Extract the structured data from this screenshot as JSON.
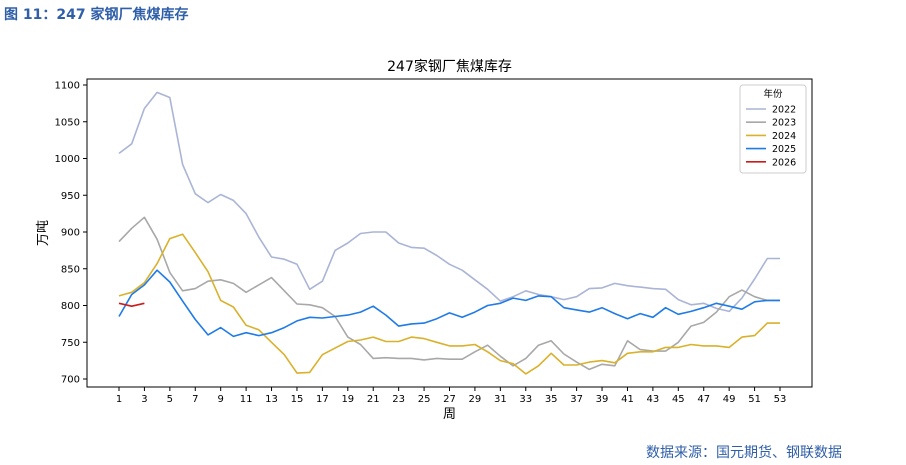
{
  "figure_caption": "图 11：247 家钢厂焦煤库存",
  "source": "数据来源：国元期货、钢联数据",
  "chart_data": {
    "type": "line",
    "title": "247家钢厂焦煤库存",
    "xlabel": "周",
    "ylabel": "万吨",
    "xlim": [
      1,
      53
    ],
    "ylim": [
      700,
      1100
    ],
    "x_ticks": [
      1,
      3,
      5,
      7,
      9,
      11,
      13,
      15,
      17,
      19,
      21,
      23,
      25,
      27,
      29,
      31,
      33,
      35,
      37,
      39,
      41,
      43,
      45,
      47,
      49,
      51,
      53
    ],
    "y_ticks": [
      700,
      750,
      800,
      850,
      900,
      950,
      1000,
      1050,
      1100
    ],
    "grid": false,
    "legend_title": "年份",
    "legend_position": "top-right",
    "series": [
      {
        "name": "2022",
        "color": "#aab4d6",
        "x": [
          1,
          2,
          3,
          4,
          5,
          6,
          7,
          8,
          9,
          10,
          11,
          12,
          13,
          14,
          15,
          16,
          17,
          18,
          19,
          20,
          21,
          22,
          23,
          24,
          25,
          26,
          27,
          28,
          29,
          30,
          31,
          32,
          33,
          34,
          35,
          36,
          37,
          38,
          39,
          40,
          41,
          42,
          43,
          44,
          45,
          46,
          47,
          48,
          49,
          50,
          51,
          52,
          53
        ],
        "values": [
          1007,
          1020,
          1068,
          1090,
          1083,
          992,
          952,
          940,
          951,
          943,
          925,
          893,
          866,
          863,
          856,
          822,
          833,
          875,
          885,
          898,
          900,
          900,
          885,
          879,
          878,
          868,
          856,
          848,
          835,
          822,
          806,
          812,
          820,
          815,
          812,
          808,
          812,
          823,
          824,
          830,
          827,
          825,
          823,
          822,
          808,
          801,
          803,
          796,
          792,
          810,
          836,
          864,
          864
        ]
      },
      {
        "name": "2023",
        "color": "#a8a8a8",
        "x": [
          1,
          2,
          3,
          4,
          5,
          6,
          7,
          8,
          9,
          10,
          11,
          12,
          13,
          14,
          15,
          16,
          17,
          18,
          19,
          20,
          21,
          22,
          23,
          24,
          25,
          26,
          27,
          28,
          29,
          30,
          31,
          32,
          33,
          34,
          35,
          36,
          37,
          38,
          39,
          40,
          41,
          42,
          43,
          44,
          45,
          46,
          47,
          48,
          49,
          50,
          51,
          52,
          53
        ],
        "values": [
          887,
          905,
          920,
          890,
          845,
          820,
          823,
          833,
          835,
          830,
          818,
          828,
          838,
          820,
          802,
          801,
          797,
          785,
          757,
          747,
          728,
          729,
          728,
          728,
          726,
          728,
          727,
          727,
          737,
          746,
          731,
          718,
          728,
          746,
          752,
          734,
          723,
          713,
          720,
          718,
          752,
          740,
          738,
          738,
          750,
          772,
          777,
          791,
          812,
          821,
          812,
          807,
          807
        ]
      },
      {
        "name": "2024",
        "color": "#d9b12b",
        "x": [
          1,
          2,
          3,
          4,
          5,
          6,
          7,
          8,
          9,
          10,
          11,
          12,
          13,
          14,
          15,
          16,
          17,
          18,
          19,
          20,
          21,
          22,
          23,
          24,
          25,
          26,
          27,
          28,
          29,
          30,
          31,
          32,
          33,
          34,
          35,
          36,
          37,
          38,
          39,
          40,
          41,
          42,
          43,
          44,
          45,
          46,
          47,
          48,
          49,
          50,
          51,
          52,
          53
        ],
        "values": [
          813,
          818,
          831,
          857,
          891,
          897,
          872,
          846,
          807,
          798,
          773,
          767,
          750,
          733,
          708,
          709,
          733,
          742,
          751,
          753,
          757,
          751,
          751,
          757,
          755,
          750,
          745,
          745,
          747,
          737,
          725,
          721,
          707,
          718,
          735,
          719,
          719,
          723,
          725,
          722,
          735,
          737,
          737,
          743,
          743,
          747,
          745,
          745,
          743,
          757,
          759,
          776,
          776
        ]
      },
      {
        "name": "2025",
        "color": "#1f7be8",
        "x": [
          1,
          2,
          3,
          4,
          5,
          6,
          7,
          8,
          9,
          10,
          11,
          12,
          13,
          14,
          15,
          16,
          17,
          18,
          19,
          20,
          21,
          22,
          23,
          24,
          25,
          26,
          27,
          28,
          29,
          30,
          31,
          32,
          33,
          34,
          35,
          36,
          37,
          38,
          39,
          40,
          41,
          42,
          43,
          44,
          45,
          46,
          47,
          48,
          49,
          50,
          51,
          52,
          53
        ],
        "values": [
          785,
          815,
          828,
          848,
          832,
          806,
          781,
          760,
          770,
          758,
          763,
          759,
          763,
          770,
          779,
          784,
          783,
          785,
          787,
          791,
          799,
          787,
          772,
          775,
          776,
          782,
          790,
          784,
          791,
          800,
          803,
          810,
          807,
          813,
          812,
          797,
          794,
          791,
          797,
          789,
          782,
          789,
          784,
          797,
          788,
          792,
          797,
          803,
          799,
          795,
          805,
          807,
          807
        ]
      },
      {
        "name": "2026",
        "color": "#cc1b1b",
        "x": [
          1,
          2,
          3
        ],
        "values": [
          803,
          799,
          803
        ]
      }
    ]
  }
}
